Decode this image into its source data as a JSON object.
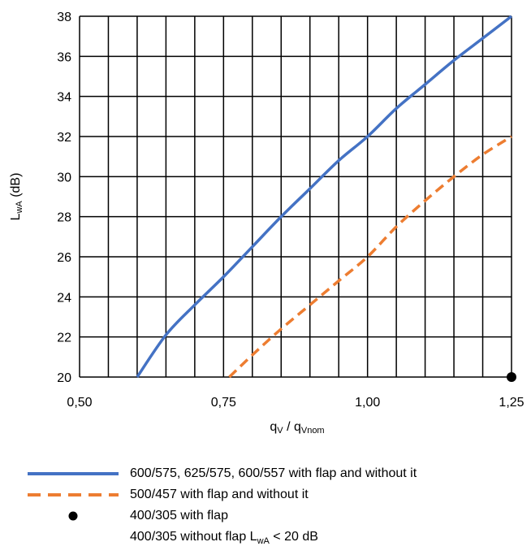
{
  "chart_data": {
    "type": "line",
    "xlabel": "q",
    "xlabel_sub1": "V",
    "xlabel_mid": " / q",
    "xlabel_sub2": "Vnom",
    "ylabel": "L",
    "ylabel_sub": "wA",
    "ylabel_suffix": " (dB)",
    "xlim": [
      0.5,
      1.25
    ],
    "ylim": [
      20,
      38
    ],
    "x_ticks": [
      0.5,
      0.75,
      1.0,
      1.25
    ],
    "x_tick_labels": [
      "0,50",
      "0,75",
      "1,00",
      "1,25"
    ],
    "y_ticks": [
      20,
      22,
      24,
      26,
      28,
      30,
      32,
      34,
      36,
      38
    ],
    "y_tick_labels": [
      "20",
      "22",
      "24",
      "26",
      "28",
      "30",
      "32",
      "34",
      "36",
      "38"
    ],
    "grid": true,
    "grid_x_step": 0.05,
    "legend_position": "bottom",
    "series": [
      {
        "name": "600/575, 625/575, 600/557 with flap and without it",
        "color": "#4472c4",
        "style": "solid",
        "x": [
          0.6,
          0.65,
          0.7,
          0.75,
          0.8,
          0.85,
          0.9,
          0.95,
          1.0,
          1.05,
          1.1,
          1.15,
          1.2,
          1.25
        ],
        "y": [
          20,
          22.1,
          23.6,
          25.0,
          26.5,
          28.0,
          29.4,
          30.8,
          32.0,
          33.4,
          34.6,
          35.8,
          36.9,
          38.0
        ]
      },
      {
        "name": "500/457 with flap and without it",
        "color": "#ed7d31",
        "style": "dashed",
        "x": [
          0.76,
          0.8,
          0.85,
          0.9,
          0.95,
          1.0,
          1.05,
          1.1,
          1.15,
          1.2,
          1.25
        ],
        "y": [
          20,
          21.1,
          22.4,
          23.6,
          24.8,
          26.0,
          27.5,
          28.8,
          30.0,
          31.1,
          32.0
        ]
      },
      {
        "name": "400/305 with flap",
        "color": "#000000",
        "style": "point",
        "x": [
          1.25
        ],
        "y": [
          20
        ]
      }
    ],
    "legend_note": {
      "text_before": "400/305 without flap L",
      "text_sub": "wA",
      "text_after": " < 20 dB"
    }
  }
}
